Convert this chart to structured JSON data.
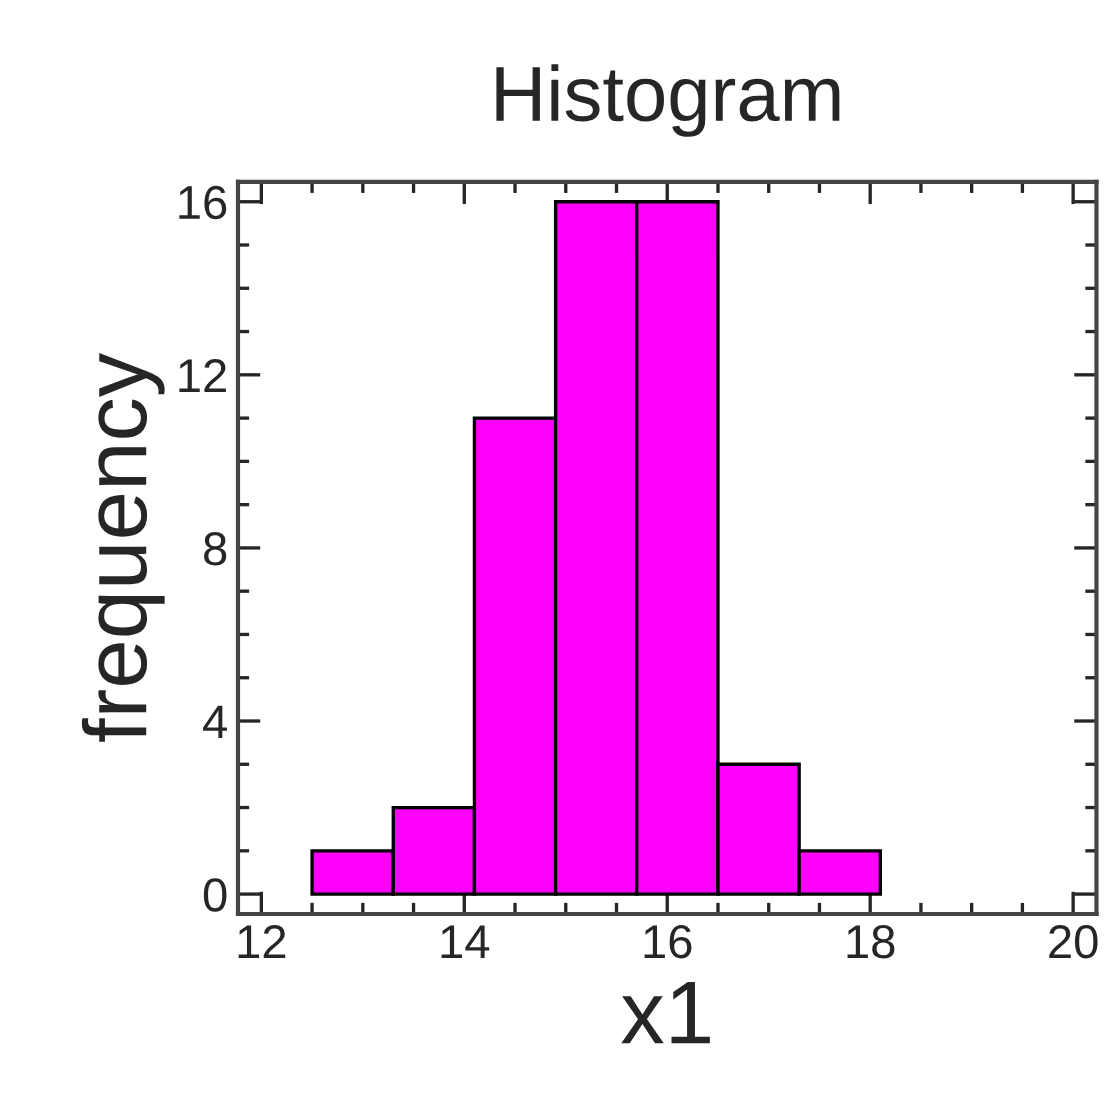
{
  "chart_data": {
    "type": "histogram",
    "title": "Histogram",
    "xlabel": "x1",
    "ylabel": "frequency",
    "bins": [
      12.5,
      13.3,
      14.1,
      14.9,
      15.7,
      16.5,
      17.3,
      18.1
    ],
    "values": [
      1,
      2,
      11,
      16,
      16,
      3,
      1
    ],
    "color": "#ff00ff",
    "xlim": [
      11.77,
      20.23
    ],
    "xticks": [
      12,
      14,
      16,
      18,
      20
    ],
    "ylim": [
      -0.46,
      16.46
    ],
    "yticks": [
      0,
      4,
      8,
      12,
      16
    ],
    "grid": false,
    "legend": false
  }
}
